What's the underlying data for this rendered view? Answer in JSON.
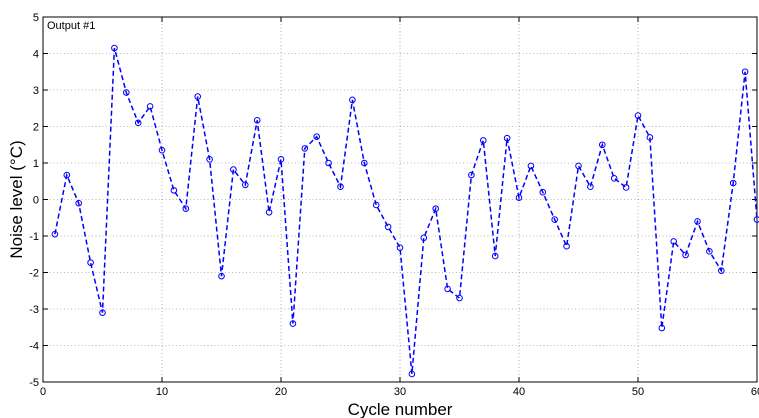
{
  "chart_data": {
    "type": "line",
    "title": "",
    "annotation": "Output #1",
    "xlabel": "Cycle number",
    "ylabel": "Noise level (°C)",
    "xlim": [
      0,
      60
    ],
    "ylim": [
      -5,
      5
    ],
    "xticks": [
      0,
      10,
      20,
      30,
      40,
      50,
      60
    ],
    "yticks": [
      -5,
      -4,
      -3,
      -2,
      -1,
      0,
      1,
      2,
      3,
      4,
      5
    ],
    "grid": true,
    "series": [
      {
        "color": "#0000ff",
        "line_style": "dashed",
        "marker": "circle",
        "x": [
          1,
          2,
          3,
          4,
          5,
          6,
          7,
          8,
          9,
          10,
          11,
          12,
          13,
          14,
          15,
          16,
          17,
          18,
          19,
          20,
          21,
          22,
          23,
          24,
          25,
          26,
          27,
          28,
          29,
          30,
          31,
          32,
          33,
          34,
          35,
          36,
          37,
          38,
          39,
          40,
          41,
          42,
          43,
          44,
          45,
          46,
          47,
          48,
          49,
          50,
          51,
          52,
          53,
          54,
          55,
          56,
          57,
          58,
          59,
          60
        ],
        "y": [
          -0.95,
          0.67,
          -0.1,
          -1.73,
          -3.1,
          4.15,
          2.93,
          2.1,
          2.55,
          1.35,
          0.25,
          -0.25,
          2.82,
          1.1,
          -2.1,
          0.82,
          0.4,
          2.17,
          -0.35,
          1.1,
          -3.4,
          1.4,
          1.72,
          1.0,
          0.35,
          2.73,
          1.0,
          -0.15,
          -0.75,
          -1.32,
          -4.78,
          -1.05,
          -0.25,
          -2.45,
          -2.7,
          0.67,
          1.62,
          -1.55,
          1.68,
          0.05,
          0.92,
          0.2,
          -0.55,
          -1.28,
          0.92,
          0.35,
          1.5,
          0.58,
          0.33,
          2.3,
          1.7,
          -3.52,
          -1.15,
          -1.52,
          -0.6,
          -1.42,
          -1.95,
          0.45,
          3.5,
          -0.55
        ]
      }
    ]
  }
}
